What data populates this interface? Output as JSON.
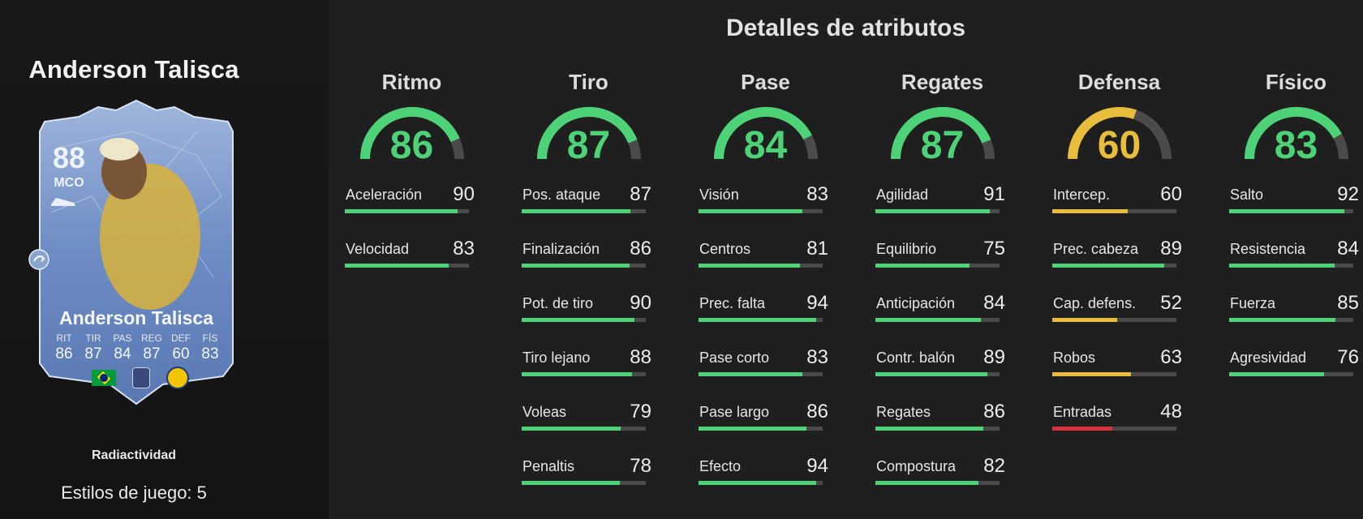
{
  "player": {
    "name": "Anderson Talisca",
    "card": {
      "rating": "88",
      "position": "MCO",
      "name": "Anderson Talisca",
      "stats": [
        {
          "label": "RIT",
          "value": "86"
        },
        {
          "label": "TIR",
          "value": "87"
        },
        {
          "label": "PAS",
          "value": "84"
        },
        {
          "label": "REG",
          "value": "87"
        },
        {
          "label": "DEF",
          "value": "60"
        },
        {
          "label": "FÍS",
          "value": "83"
        }
      ],
      "icons": [
        "brazil-flag-icon",
        "league-logo-icon",
        "club-badge-icon",
        "playstyle-swap-icon",
        "boot-icon"
      ]
    },
    "playstyle_label": "Radiactividad",
    "playstyles_count": "Estilos de juego: 5"
  },
  "details_title": "Detalles de atributos",
  "colors": {
    "green": "#4ed277",
    "yellow": "#e8bd3c",
    "red": "#d8323c",
    "track": "#4a4a4a"
  },
  "categories": [
    {
      "name": "Ritmo",
      "value": 86,
      "color": "green",
      "attributes": [
        {
          "name": "Aceleración",
          "value": 90,
          "color": "green"
        },
        {
          "name": "Velocidad",
          "value": 83,
          "color": "green"
        }
      ]
    },
    {
      "name": "Tiro",
      "value": 87,
      "color": "green",
      "attributes": [
        {
          "name": "Pos. ataque",
          "value": 87,
          "color": "green"
        },
        {
          "name": "Finalización",
          "value": 86,
          "color": "green"
        },
        {
          "name": "Pot. de tiro",
          "value": 90,
          "color": "green"
        },
        {
          "name": "Tiro lejano",
          "value": 88,
          "color": "green"
        },
        {
          "name": "Voleas",
          "value": 79,
          "color": "green"
        },
        {
          "name": "Penaltis",
          "value": 78,
          "color": "green"
        }
      ]
    },
    {
      "name": "Pase",
      "value": 84,
      "color": "green",
      "attributes": [
        {
          "name": "Visión",
          "value": 83,
          "color": "green"
        },
        {
          "name": "Centros",
          "value": 81,
          "color": "green"
        },
        {
          "name": "Prec. falta",
          "value": 94,
          "color": "green"
        },
        {
          "name": "Pase corto",
          "value": 83,
          "color": "green"
        },
        {
          "name": "Pase largo",
          "value": 86,
          "color": "green"
        },
        {
          "name": "Efecto",
          "value": 94,
          "color": "green"
        }
      ]
    },
    {
      "name": "Regates",
      "value": 87,
      "color": "green",
      "attributes": [
        {
          "name": "Agilidad",
          "value": 91,
          "color": "green"
        },
        {
          "name": "Equilibrio",
          "value": 75,
          "color": "green"
        },
        {
          "name": "Anticipación",
          "value": 84,
          "color": "green"
        },
        {
          "name": "Contr. balón",
          "value": 89,
          "color": "green"
        },
        {
          "name": "Regates",
          "value": 86,
          "color": "green"
        },
        {
          "name": "Compostura",
          "value": 82,
          "color": "green"
        }
      ]
    },
    {
      "name": "Defensa",
      "value": 60,
      "color": "yellow",
      "attributes": [
        {
          "name": "Intercep.",
          "value": 60,
          "color": "yellow"
        },
        {
          "name": "Prec. cabeza",
          "value": 89,
          "color": "green"
        },
        {
          "name": "Cap. defens.",
          "value": 52,
          "color": "yellow"
        },
        {
          "name": "Robos",
          "value": 63,
          "color": "yellow"
        },
        {
          "name": "Entradas",
          "value": 48,
          "color": "red"
        }
      ]
    },
    {
      "name": "Físico",
      "value": 83,
      "color": "green",
      "attributes": [
        {
          "name": "Salto",
          "value": 92,
          "color": "green"
        },
        {
          "name": "Resistencia",
          "value": 84,
          "color": "green"
        },
        {
          "name": "Fuerza",
          "value": 85,
          "color": "green"
        },
        {
          "name": "Agresividad",
          "value": 76,
          "color": "green"
        }
      ]
    }
  ]
}
